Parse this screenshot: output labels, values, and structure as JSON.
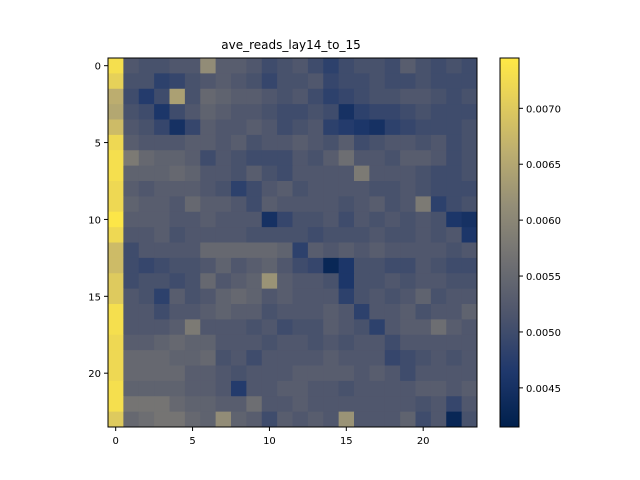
{
  "chart_data": {
    "type": "heatmap",
    "title": "ave_reads_lay14_to_15",
    "rows": 24,
    "cols": 24,
    "x_ticks": [
      0,
      5,
      10,
      15,
      20
    ],
    "y_ticks": [
      0,
      5,
      10,
      15,
      20
    ],
    "colormap": "cividis",
    "vmin": 0.00415,
    "vmax": 0.00745,
    "colorbar_ticks": [
      "0.0045",
      "0.0050",
      "0.0055",
      "0.0060",
      "0.0065",
      "0.0070"
    ],
    "values": [
      [
        0.0073,
        0.0052,
        0.0051,
        0.0051,
        0.0052,
        0.0052,
        0.0061,
        0.0053,
        0.0053,
        0.0052,
        0.005,
        0.0051,
        0.0052,
        0.005,
        0.0048,
        0.005,
        0.0051,
        0.0051,
        0.005,
        0.0053,
        0.0051,
        0.005,
        0.0051,
        0.005
      ],
      [
        0.0071,
        0.0051,
        0.0051,
        0.0048,
        0.0049,
        0.0051,
        0.0052,
        0.0053,
        0.0052,
        0.0051,
        0.0049,
        0.0051,
        0.0051,
        0.0052,
        0.0049,
        0.005,
        0.005,
        0.0051,
        0.005,
        0.005,
        0.0051,
        0.005,
        0.005,
        0.005
      ],
      [
        0.0066,
        0.005,
        0.0047,
        0.005,
        0.0064,
        0.0051,
        0.0055,
        0.0054,
        0.0053,
        0.0053,
        0.0052,
        0.0051,
        0.0052,
        0.005,
        0.0048,
        0.0049,
        0.005,
        0.0051,
        0.0051,
        0.0052,
        0.0052,
        0.0051,
        0.005,
        0.0051
      ],
      [
        0.0065,
        0.0051,
        0.005,
        0.0046,
        0.005,
        0.0052,
        0.0054,
        0.0053,
        0.0052,
        0.0052,
        0.0051,
        0.005,
        0.005,
        0.0051,
        0.005,
        0.0045,
        0.0048,
        0.0049,
        0.0049,
        0.005,
        0.0051,
        0.005,
        0.005,
        0.005
      ],
      [
        0.0068,
        0.0052,
        0.0051,
        0.0049,
        0.0045,
        0.0049,
        0.0053,
        0.0052,
        0.0052,
        0.0053,
        0.0052,
        0.005,
        0.0051,
        0.0052,
        0.0048,
        0.0047,
        0.0046,
        0.0045,
        0.0048,
        0.0049,
        0.005,
        0.005,
        0.005,
        0.0051
      ],
      [
        0.0072,
        0.0053,
        0.0052,
        0.0052,
        0.0052,
        0.0053,
        0.0053,
        0.0052,
        0.0053,
        0.0051,
        0.0052,
        0.0052,
        0.0053,
        0.0052,
        0.0051,
        0.0053,
        0.005,
        0.0051,
        0.0052,
        0.0052,
        0.0051,
        0.0052,
        0.005,
        0.0051
      ],
      [
        0.0073,
        0.0058,
        0.0055,
        0.0054,
        0.0054,
        0.0053,
        0.005,
        0.0052,
        0.0051,
        0.005,
        0.005,
        0.005,
        0.0052,
        0.0051,
        0.0053,
        0.0056,
        0.0052,
        0.0052,
        0.0051,
        0.0053,
        0.0053,
        0.0052,
        0.005,
        0.0051
      ],
      [
        0.0073,
        0.0054,
        0.0054,
        0.0054,
        0.0055,
        0.0054,
        0.0052,
        0.0052,
        0.0051,
        0.0053,
        0.0051,
        0.005,
        0.0052,
        0.0052,
        0.0052,
        0.0052,
        0.0058,
        0.0052,
        0.0052,
        0.0052,
        0.0051,
        0.005,
        0.005,
        0.0051
      ],
      [
        0.0072,
        0.0053,
        0.0052,
        0.0053,
        0.0053,
        0.0053,
        0.0052,
        0.0051,
        0.0048,
        0.005,
        0.0052,
        0.0053,
        0.0051,
        0.0052,
        0.0052,
        0.0052,
        0.0052,
        0.0051,
        0.0051,
        0.0052,
        0.0051,
        0.005,
        0.005,
        0.005
      ],
      [
        0.0072,
        0.0054,
        0.0053,
        0.0053,
        0.0052,
        0.0055,
        0.0053,
        0.0053,
        0.0052,
        0.005,
        0.0053,
        0.0052,
        0.0052,
        0.0052,
        0.0052,
        0.0051,
        0.0052,
        0.0053,
        0.0051,
        0.0052,
        0.0058,
        0.0048,
        0.005,
        0.0051
      ],
      [
        0.0074,
        0.0053,
        0.0053,
        0.0053,
        0.0052,
        0.0052,
        0.0053,
        0.0052,
        0.0052,
        0.0052,
        0.0045,
        0.0049,
        0.0051,
        0.0051,
        0.0052,
        0.005,
        0.0052,
        0.0051,
        0.0052,
        0.0051,
        0.0052,
        0.0051,
        0.0046,
        0.0045
      ],
      [
        0.0072,
        0.0052,
        0.0052,
        0.0053,
        0.0051,
        0.0052,
        0.0052,
        0.0052,
        0.0052,
        0.0051,
        0.0051,
        0.0051,
        0.0051,
        0.005,
        0.0051,
        0.0051,
        0.0051,
        0.0052,
        0.0051,
        0.0051,
        0.0052,
        0.0051,
        0.0052,
        0.0046
      ],
      [
        0.0068,
        0.005,
        0.0052,
        0.0052,
        0.0052,
        0.0052,
        0.0055,
        0.0055,
        0.0055,
        0.0055,
        0.0055,
        0.0054,
        0.0048,
        0.0053,
        0.0052,
        0.0053,
        0.0052,
        0.0053,
        0.0052,
        0.0052,
        0.0052,
        0.0052,
        0.0051,
        0.0052
      ],
      [
        0.0068,
        0.005,
        0.0049,
        0.005,
        0.0051,
        0.0051,
        0.0052,
        0.0054,
        0.0052,
        0.0053,
        0.0054,
        0.0052,
        0.005,
        0.0049,
        0.0043,
        0.0046,
        0.0051,
        0.0051,
        0.005,
        0.005,
        0.0052,
        0.0051,
        0.005,
        0.005
      ],
      [
        0.007,
        0.005,
        0.0051,
        0.0051,
        0.005,
        0.0051,
        0.0055,
        0.0052,
        0.0053,
        0.0054,
        0.0062,
        0.0053,
        0.0052,
        0.0052,
        0.0051,
        0.0046,
        0.0051,
        0.0051,
        0.0052,
        0.0051,
        0.0052,
        0.0052,
        0.0051,
        0.0051
      ],
      [
        0.007,
        0.0052,
        0.0051,
        0.0048,
        0.0053,
        0.0051,
        0.0052,
        0.0054,
        0.0055,
        0.0054,
        0.0052,
        0.0053,
        0.0052,
        0.0052,
        0.0052,
        0.0048,
        0.0051,
        0.0052,
        0.0051,
        0.0052,
        0.0054,
        0.0051,
        0.0052,
        0.0052
      ],
      [
        0.0073,
        0.0052,
        0.0052,
        0.005,
        0.0052,
        0.0052,
        0.0053,
        0.0054,
        0.0053,
        0.0053,
        0.0051,
        0.0052,
        0.0052,
        0.0052,
        0.0053,
        0.0052,
        0.0048,
        0.0052,
        0.0052,
        0.0053,
        0.0051,
        0.0052,
        0.0052,
        0.0054
      ],
      [
        0.0073,
        0.0052,
        0.0052,
        0.0052,
        0.0053,
        0.0058,
        0.0052,
        0.0052,
        0.0052,
        0.0051,
        0.0052,
        0.005,
        0.0051,
        0.0051,
        0.0053,
        0.0052,
        0.0051,
        0.0048,
        0.0052,
        0.0053,
        0.0053,
        0.0056,
        0.0053,
        0.0052
      ],
      [
        0.0072,
        0.0053,
        0.0053,
        0.0054,
        0.0055,
        0.0054,
        0.0054,
        0.0052,
        0.0052,
        0.0052,
        0.0051,
        0.0052,
        0.0052,
        0.0051,
        0.0052,
        0.0051,
        0.0052,
        0.0052,
        0.005,
        0.0052,
        0.0052,
        0.0052,
        0.0052,
        0.0052
      ],
      [
        0.0072,
        0.0055,
        0.0055,
        0.0055,
        0.0054,
        0.0054,
        0.0055,
        0.0051,
        0.0052,
        0.005,
        0.0052,
        0.0052,
        0.0052,
        0.0052,
        0.0053,
        0.0052,
        0.0052,
        0.0052,
        0.0049,
        0.005,
        0.0051,
        0.0052,
        0.0051,
        0.0052
      ],
      [
        0.0072,
        0.0055,
        0.0055,
        0.0055,
        0.0055,
        0.0053,
        0.0053,
        0.0052,
        0.0051,
        0.0052,
        0.0052,
        0.0052,
        0.0053,
        0.0053,
        0.0053,
        0.0053,
        0.0052,
        0.0053,
        0.0052,
        0.005,
        0.0052,
        0.0052,
        0.0052,
        0.0052
      ],
      [
        0.0073,
        0.0054,
        0.0054,
        0.0054,
        0.0054,
        0.0053,
        0.0053,
        0.0052,
        0.0047,
        0.0052,
        0.0052,
        0.0053,
        0.0053,
        0.0052,
        0.0052,
        0.0051,
        0.0052,
        0.0052,
        0.0052,
        0.0052,
        0.0053,
        0.0053,
        0.0052,
        0.0053
      ],
      [
        0.0073,
        0.0057,
        0.0057,
        0.0057,
        0.0055,
        0.0054,
        0.0054,
        0.0053,
        0.0053,
        0.0056,
        0.0052,
        0.0052,
        0.0053,
        0.0052,
        0.0052,
        0.0052,
        0.0052,
        0.0052,
        0.0052,
        0.0052,
        0.0051,
        0.0052,
        0.0049,
        0.0052
      ],
      [
        0.007,
        0.0055,
        0.0056,
        0.0057,
        0.0057,
        0.0055,
        0.0054,
        0.0061,
        0.0054,
        0.0053,
        0.005,
        0.0053,
        0.0052,
        0.0053,
        0.0052,
        0.0062,
        0.0052,
        0.0052,
        0.0052,
        0.0054,
        0.005,
        0.0052,
        0.0043,
        0.0051
      ]
    ]
  }
}
